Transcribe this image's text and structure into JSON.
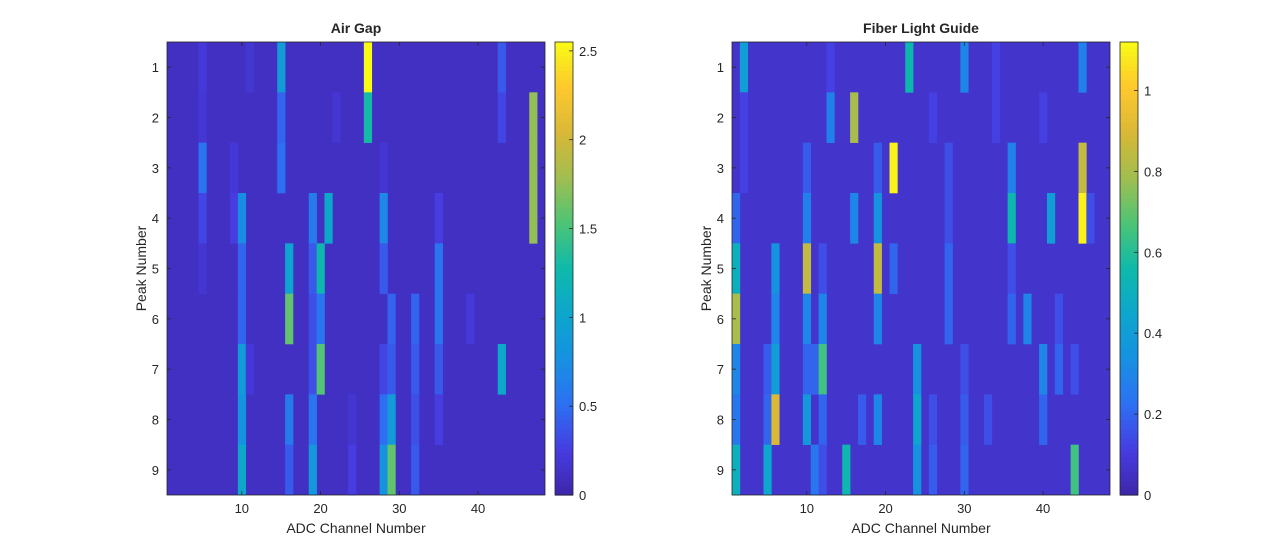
{
  "chart_data": [
    {
      "type": "heatmap",
      "title": "Air Gap",
      "xlabel": "ADC Channel Number",
      "ylabel": "Peak Number",
      "x_range": [
        0.5,
        48.5
      ],
      "y_range": [
        0.5,
        9.5
      ],
      "xticks": [
        10,
        20,
        30,
        40
      ],
      "yticks": [
        1,
        2,
        3,
        4,
        5,
        6,
        7,
        8,
        9
      ],
      "colorbar": {
        "range": [
          0,
          2.55
        ],
        "ticks": [
          0,
          0.5,
          1,
          1.5,
          2,
          2.5
        ],
        "tick_labels": [
          "0",
          "0.5",
          "1",
          "1.5",
          "2",
          "2.5"
        ]
      },
      "background_value": 0.12,
      "cells": [
        [
          1,
          5,
          0.22
        ],
        [
          1,
          11,
          0.18
        ],
        [
          1,
          15,
          0.9
        ],
        [
          1,
          26,
          2.55
        ],
        [
          1,
          43,
          0.4
        ],
        [
          2,
          5,
          0.2
        ],
        [
          2,
          15,
          0.45
        ],
        [
          2,
          22,
          0.18
        ],
        [
          2,
          26,
          1.3
        ],
        [
          2,
          43,
          0.3
        ],
        [
          2,
          47,
          1.75
        ],
        [
          3,
          5,
          0.55
        ],
        [
          3,
          9,
          0.2
        ],
        [
          3,
          15,
          0.5
        ],
        [
          3,
          28,
          0.18
        ],
        [
          3,
          47,
          1.75
        ],
        [
          4,
          5,
          0.3
        ],
        [
          4,
          9,
          0.25
        ],
        [
          4,
          10,
          0.75
        ],
        [
          4,
          19,
          0.6
        ],
        [
          4,
          21,
          1.05
        ],
        [
          4,
          28,
          0.7
        ],
        [
          4,
          35,
          0.25
        ],
        [
          4,
          47,
          1.75
        ],
        [
          5,
          5,
          0.18
        ],
        [
          5,
          10,
          0.45
        ],
        [
          5,
          16,
          1.0
        ],
        [
          5,
          19,
          0.4
        ],
        [
          5,
          20,
          1.25
        ],
        [
          5,
          28,
          0.4
        ],
        [
          5,
          35,
          0.55
        ],
        [
          6,
          10,
          0.45
        ],
        [
          6,
          16,
          1.6
        ],
        [
          6,
          19,
          0.35
        ],
        [
          6,
          20,
          0.55
        ],
        [
          6,
          29,
          0.45
        ],
        [
          6,
          32,
          0.45
        ],
        [
          6,
          35,
          0.55
        ],
        [
          6,
          39,
          0.22
        ],
        [
          7,
          10,
          0.9
        ],
        [
          7,
          11,
          0.2
        ],
        [
          7,
          19,
          0.35
        ],
        [
          7,
          20,
          1.55
        ],
        [
          7,
          28,
          0.3
        ],
        [
          7,
          29,
          0.4
        ],
        [
          7,
          32,
          0.4
        ],
        [
          7,
          35,
          0.4
        ],
        [
          7,
          43,
          1.05
        ],
        [
          8,
          10,
          0.8
        ],
        [
          8,
          16,
          0.6
        ],
        [
          8,
          19,
          0.55
        ],
        [
          8,
          24,
          0.18
        ],
        [
          8,
          28,
          0.5
        ],
        [
          8,
          29,
          0.9
        ],
        [
          8,
          32,
          0.35
        ],
        [
          8,
          35,
          0.25
        ],
        [
          9,
          10,
          1.05
        ],
        [
          9,
          16,
          0.4
        ],
        [
          9,
          19,
          0.85
        ],
        [
          9,
          24,
          0.25
        ],
        [
          9,
          28,
          0.8
        ],
        [
          9,
          29,
          1.6
        ],
        [
          9,
          32,
          0.4
        ]
      ]
    },
    {
      "type": "heatmap",
      "title": "Fiber Light Guide",
      "xlabel": "ADC Channel Number",
      "ylabel": "Peak Number",
      "x_range": [
        0.5,
        48.5
      ],
      "y_range": [
        0.5,
        9.5
      ],
      "xticks": [
        10,
        20,
        30,
        40
      ],
      "yticks": [
        1,
        2,
        3,
        4,
        5,
        6,
        7,
        8,
        9
      ],
      "colorbar": {
        "range": [
          0,
          1.12
        ],
        "ticks": [
          0,
          0.2,
          0.4,
          0.6,
          0.8,
          1
        ],
        "tick_labels": [
          "0",
          "0.2",
          "0.4",
          "0.6",
          "0.8",
          "1"
        ]
      },
      "background_value": 0.07,
      "cells": [
        [
          1,
          2,
          0.4
        ],
        [
          1,
          13,
          0.12
        ],
        [
          1,
          23,
          0.55
        ],
        [
          1,
          30,
          0.3
        ],
        [
          1,
          34,
          0.12
        ],
        [
          1,
          45,
          0.28
        ],
        [
          2,
          2,
          0.12
        ],
        [
          2,
          13,
          0.28
        ],
        [
          2,
          16,
          0.8
        ],
        [
          2,
          26,
          0.12
        ],
        [
          2,
          34,
          0.12
        ],
        [
          2,
          40,
          0.12
        ],
        [
          3,
          2,
          0.12
        ],
        [
          3,
          10,
          0.18
        ],
        [
          3,
          19,
          0.18
        ],
        [
          3,
          21,
          1.1
        ],
        [
          3,
          28,
          0.15
        ],
        [
          3,
          36,
          0.28
        ],
        [
          3,
          45,
          0.85
        ],
        [
          4,
          1,
          0.2
        ],
        [
          4,
          10,
          0.28
        ],
        [
          4,
          16,
          0.3
        ],
        [
          4,
          19,
          0.35
        ],
        [
          4,
          28,
          0.15
        ],
        [
          4,
          36,
          0.55
        ],
        [
          4,
          41,
          0.4
        ],
        [
          4,
          45,
          1.1
        ],
        [
          4,
          46,
          0.15
        ],
        [
          5,
          1,
          0.5
        ],
        [
          5,
          6,
          0.35
        ],
        [
          5,
          10,
          0.85
        ],
        [
          5,
          12,
          0.15
        ],
        [
          5,
          19,
          0.85
        ],
        [
          5,
          21,
          0.2
        ],
        [
          5,
          28,
          0.2
        ],
        [
          5,
          36,
          0.15
        ],
        [
          6,
          1,
          0.8
        ],
        [
          6,
          6,
          0.3
        ],
        [
          6,
          10,
          0.3
        ],
        [
          6,
          12,
          0.3
        ],
        [
          6,
          19,
          0.3
        ],
        [
          6,
          28,
          0.2
        ],
        [
          6,
          36,
          0.2
        ],
        [
          6,
          38,
          0.3
        ],
        [
          6,
          42,
          0.15
        ],
        [
          7,
          1,
          0.3
        ],
        [
          7,
          5,
          0.18
        ],
        [
          7,
          6,
          0.4
        ],
        [
          7,
          10,
          0.2
        ],
        [
          7,
          11,
          0.2
        ],
        [
          7,
          12,
          0.65
        ],
        [
          7,
          24,
          0.35
        ],
        [
          7,
          30,
          0.15
        ],
        [
          7,
          40,
          0.3
        ],
        [
          7,
          42,
          0.2
        ],
        [
          7,
          44,
          0.15
        ],
        [
          8,
          1,
          0.25
        ],
        [
          8,
          5,
          0.2
        ],
        [
          8,
          6,
          0.9
        ],
        [
          8,
          10,
          0.38
        ],
        [
          8,
          12,
          0.2
        ],
        [
          8,
          17,
          0.18
        ],
        [
          8,
          19,
          0.3
        ],
        [
          8,
          24,
          0.45
        ],
        [
          8,
          26,
          0.15
        ],
        [
          8,
          30,
          0.18
        ],
        [
          8,
          33,
          0.15
        ],
        [
          8,
          40,
          0.2
        ],
        [
          9,
          1,
          0.5
        ],
        [
          9,
          5,
          0.45
        ],
        [
          9,
          11,
          0.25
        ],
        [
          9,
          12,
          0.15
        ],
        [
          9,
          15,
          0.55
        ],
        [
          9,
          24,
          0.35
        ],
        [
          9,
          26,
          0.18
        ],
        [
          9,
          30,
          0.2
        ],
        [
          9,
          44,
          0.65
        ]
      ]
    }
  ]
}
